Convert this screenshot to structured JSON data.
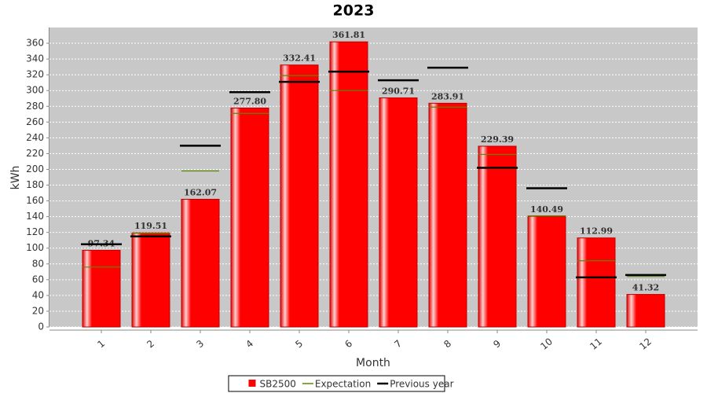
{
  "chart_data": {
    "type": "bar",
    "title": "2023",
    "x_label": "Month",
    "y_label": "kWh",
    "categories": [
      "1",
      "2",
      "3",
      "4",
      "5",
      "6",
      "7",
      "8",
      "9",
      "10",
      "11",
      "12"
    ],
    "series": [
      {
        "name": "SB2500",
        "color": "#ff0000",
        "mark": "bar",
        "values": [
          97.34,
          119.51,
          162.07,
          277.8,
          332.41,
          361.81,
          290.71,
          283.91,
          229.39,
          140.49,
          112.99,
          41.32
        ],
        "value_labels": [
          "97.34",
          "119.51",
          "162.07",
          "277.80",
          "332.41",
          "361.81",
          "290.71",
          "283.91",
          "229.39",
          "140.49",
          "112.99",
          "41.32"
        ]
      },
      {
        "name": "Expectation",
        "color": "#5a8a00",
        "mark": "marker",
        "values": [
          76,
          119,
          198,
          271,
          319,
          300,
          null,
          279,
          219,
          141,
          84,
          64
        ]
      },
      {
        "name": "Previous year",
        "color": "#000000",
        "mark": "marker",
        "values": [
          105,
          115,
          230,
          298,
          311,
          324,
          313,
          329,
          202,
          176,
          63,
          66
        ]
      }
    ],
    "ylim": [
      0,
      380
    ],
    "yticks": [
      0,
      20,
      40,
      60,
      80,
      100,
      120,
      140,
      160,
      180,
      200,
      220,
      240,
      260,
      280,
      300,
      320,
      340,
      360
    ],
    "grid": true,
    "legend": "bottom"
  }
}
